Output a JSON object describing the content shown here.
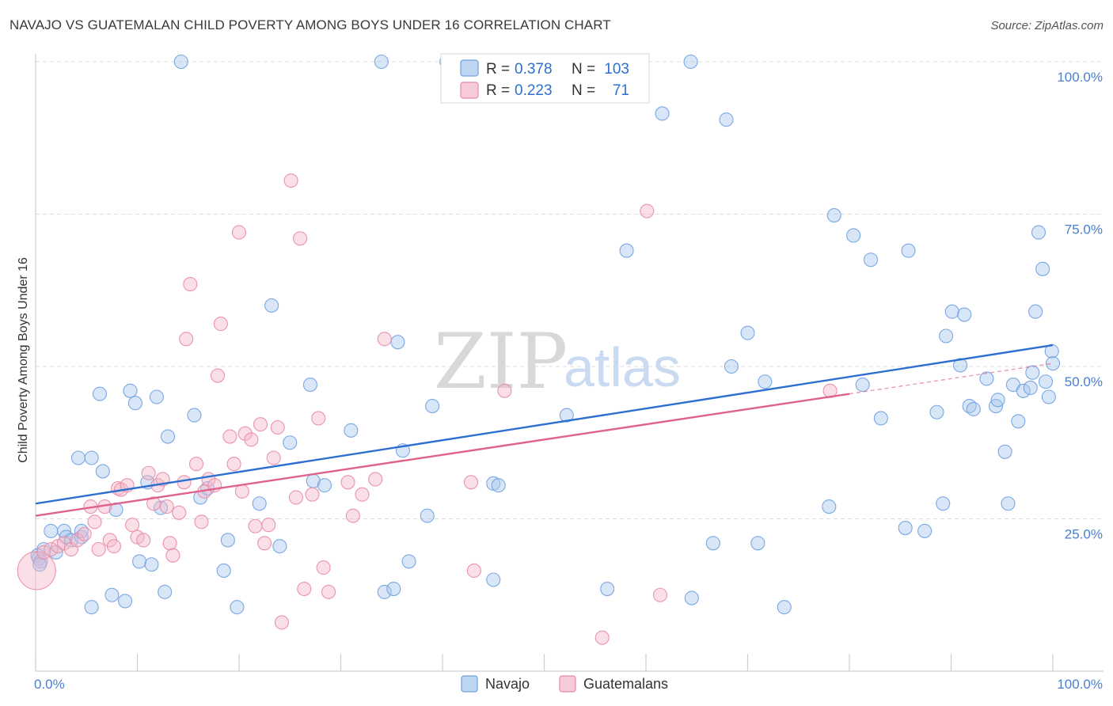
{
  "title": "NAVAJO VS GUATEMALAN CHILD POVERTY AMONG BOYS UNDER 16 CORRELATION CHART",
  "source": "Source: ZipAtlas.com",
  "watermark": {
    "zip": "ZIP",
    "atlas": "atlas"
  },
  "legend": {
    "rows": [
      {
        "r_label": "R = ",
        "r_value": "0.378",
        "n_label": "N = ",
        "n_value": "103",
        "color": "#a9c8ee"
      },
      {
        "r_label": "R = ",
        "r_value": "0.223",
        "n_label": "N = ",
        "n_value": "71",
        "color": "#f4b8c9"
      }
    ]
  },
  "bottom_legend": [
    {
      "label": "Navajo",
      "color": "#a9c8ee"
    },
    {
      "label": "Guatemalans",
      "color": "#f4b8c9"
    }
  ],
  "chart_data": {
    "type": "scatter",
    "title": "NAVAJO VS GUATEMALAN CHILD POVERTY AMONG BOYS UNDER 16 CORRELATION CHART",
    "xlabel": "",
    "ylabel": "Child Poverty Among Boys Under 16",
    "xlim": [
      0,
      100
    ],
    "ylim": [
      0,
      100
    ],
    "x_tick_labels": [
      "0.0%",
      "100.0%"
    ],
    "y_tick_labels": [
      "25.0%",
      "50.0%",
      "75.0%",
      "100.0%"
    ],
    "y_ticks": [
      25,
      50,
      75,
      100
    ],
    "grid": true,
    "series": [
      {
        "name": "Navajo",
        "color": "#6ea0e0",
        "fill": "#a9c8ee",
        "trend": {
          "x": [
            0,
            100
          ],
          "y": [
            27.5,
            53.5
          ],
          "color": "#2d6fd1"
        },
        "points": [
          [
            0.2,
            19
          ],
          [
            0.3,
            18.5
          ],
          [
            0.5,
            18
          ],
          [
            0.8,
            20
          ],
          [
            1.5,
            23
          ],
          [
            2,
            19.5
          ],
          [
            2.8,
            23
          ],
          [
            3,
            22
          ],
          [
            3.5,
            21.5
          ],
          [
            4.5,
            22
          ],
          [
            4.5,
            23
          ],
          [
            4.2,
            35
          ],
          [
            5.5,
            35
          ],
          [
            5.5,
            10.5
          ],
          [
            6.3,
            45.5
          ],
          [
            6.6,
            32.8
          ],
          [
            7.5,
            12.5
          ],
          [
            7.9,
            26.5
          ],
          [
            8.8,
            11.5
          ],
          [
            9.3,
            46
          ],
          [
            9.8,
            44
          ],
          [
            10.2,
            18
          ],
          [
            11,
            31
          ],
          [
            11.4,
            17.5
          ],
          [
            11.9,
            45
          ],
          [
            12.3,
            26.8
          ],
          [
            12.7,
            13
          ],
          [
            13,
            38.5
          ],
          [
            14.3,
            100
          ],
          [
            15.6,
            42
          ],
          [
            16.2,
            28.5
          ],
          [
            16.9,
            30
          ],
          [
            18.5,
            16.5
          ],
          [
            18.9,
            21.5
          ],
          [
            19.8,
            10.5
          ],
          [
            22,
            27.5
          ],
          [
            23.2,
            60
          ],
          [
            24,
            20.5
          ],
          [
            25,
            37.5
          ],
          [
            27,
            47
          ],
          [
            27.3,
            31.2
          ],
          [
            28.4,
            30.5
          ],
          [
            31,
            39.5
          ],
          [
            34,
            100
          ],
          [
            34.3,
            13
          ],
          [
            35.2,
            13.5
          ],
          [
            35.6,
            54
          ],
          [
            36.1,
            36.2
          ],
          [
            36.7,
            18
          ],
          [
            38.5,
            25.5
          ],
          [
            39,
            43.5
          ],
          [
            40.4,
            100
          ],
          [
            45,
            30.8
          ],
          [
            45.5,
            30.5
          ],
          [
            45,
            15
          ],
          [
            52.2,
            42
          ],
          [
            56.2,
            13.5
          ],
          [
            58.1,
            69
          ],
          [
            61.6,
            91.5
          ],
          [
            64.4,
            100
          ],
          [
            64.5,
            12
          ],
          [
            66.6,
            21
          ],
          [
            67.9,
            90.5
          ],
          [
            68.4,
            50
          ],
          [
            70,
            55.5
          ],
          [
            71,
            21
          ],
          [
            71.7,
            47.5
          ],
          [
            73.6,
            10.5
          ],
          [
            78,
            27
          ],
          [
            78.5,
            74.8
          ],
          [
            80.4,
            71.5
          ],
          [
            81.3,
            47
          ],
          [
            82.1,
            67.5
          ],
          [
            83.1,
            41.5
          ],
          [
            85.5,
            23.5
          ],
          [
            85.8,
            69
          ],
          [
            87.4,
            23
          ],
          [
            88.6,
            42.5
          ],
          [
            89.2,
            27.5
          ],
          [
            89.5,
            55
          ],
          [
            90.1,
            59
          ],
          [
            90.9,
            50.2
          ],
          [
            91.3,
            58.5
          ],
          [
            91.8,
            43.5
          ],
          [
            92.2,
            43
          ],
          [
            93.5,
            48
          ],
          [
            94.4,
            43.5
          ],
          [
            94.6,
            44.5
          ],
          [
            95.3,
            36
          ],
          [
            95.6,
            27.5
          ],
          [
            96.1,
            47
          ],
          [
            96.6,
            41
          ],
          [
            97.1,
            46
          ],
          [
            97.8,
            46.5
          ],
          [
            98,
            49
          ],
          [
            98.3,
            59
          ],
          [
            98.6,
            72
          ],
          [
            99,
            66
          ],
          [
            99.3,
            47.5
          ],
          [
            99.6,
            45
          ],
          [
            99.9,
            52.5
          ],
          [
            100,
            50.5
          ],
          [
            0.4,
            17.5
          ]
        ]
      },
      {
        "name": "Guatemalans",
        "color": "#e88aa5",
        "fill": "#f4b8c9",
        "trend": {
          "x": [
            0,
            80
          ],
          "y": [
            25.5,
            45.5
          ],
          "color": "#e0628c"
        },
        "trend_dashed": {
          "x": [
            80,
            100
          ],
          "y": [
            45.5,
            50.5
          ]
        },
        "points": [
          [
            0.1,
            16.5
          ],
          [
            0.8,
            19.5
          ],
          [
            1.5,
            20
          ],
          [
            2.2,
            20.5
          ],
          [
            2.8,
            21
          ],
          [
            3.5,
            20
          ],
          [
            4.1,
            21.5
          ],
          [
            4.8,
            22.5
          ],
          [
            5.4,
            27
          ],
          [
            5.8,
            24.5
          ],
          [
            6.2,
            20
          ],
          [
            6.8,
            27
          ],
          [
            7.3,
            21.5
          ],
          [
            7.7,
            20.5
          ],
          [
            8.1,
            30
          ],
          [
            8.4,
            29.8
          ],
          [
            9,
            30.5
          ],
          [
            9.5,
            24
          ],
          [
            10,
            22
          ],
          [
            10.6,
            21.5
          ],
          [
            11.1,
            32.5
          ],
          [
            11.6,
            27.5
          ],
          [
            12,
            30.5
          ],
          [
            12.5,
            31.5
          ],
          [
            12.9,
            27
          ],
          [
            13.2,
            21
          ],
          [
            13.5,
            19
          ],
          [
            14.1,
            26
          ],
          [
            14.6,
            31
          ],
          [
            14.8,
            54.5
          ],
          [
            15.2,
            63.5
          ],
          [
            15.8,
            34
          ],
          [
            16.3,
            24.5
          ],
          [
            16.6,
            29.5
          ],
          [
            17,
            31.5
          ],
          [
            17.6,
            30.5
          ],
          [
            17.9,
            48.5
          ],
          [
            18.2,
            57
          ],
          [
            19.1,
            38.5
          ],
          [
            19.5,
            34
          ],
          [
            20,
            72
          ],
          [
            20.3,
            29.5
          ],
          [
            20.6,
            39
          ],
          [
            21.2,
            38
          ],
          [
            21.6,
            23.8
          ],
          [
            22.1,
            40.5
          ],
          [
            22.5,
            21
          ],
          [
            22.9,
            24
          ],
          [
            23.4,
            35
          ],
          [
            23.8,
            40
          ],
          [
            24.2,
            8
          ],
          [
            25.1,
            80.5
          ],
          [
            25.6,
            28.5
          ],
          [
            26,
            71
          ],
          [
            26.4,
            13.5
          ],
          [
            27.2,
            29
          ],
          [
            27.8,
            41.5
          ],
          [
            28.3,
            17
          ],
          [
            28.8,
            13
          ],
          [
            30.7,
            31
          ],
          [
            31.2,
            25.5
          ],
          [
            32.1,
            29
          ],
          [
            33.4,
            31.5
          ],
          [
            34.3,
            54.5
          ],
          [
            42.8,
            31
          ],
          [
            43.1,
            16.5
          ],
          [
            46.1,
            46
          ],
          [
            55.7,
            5.5
          ],
          [
            60.1,
            75.5
          ],
          [
            61.4,
            12.5
          ],
          [
            78.1,
            46
          ]
        ]
      }
    ]
  }
}
